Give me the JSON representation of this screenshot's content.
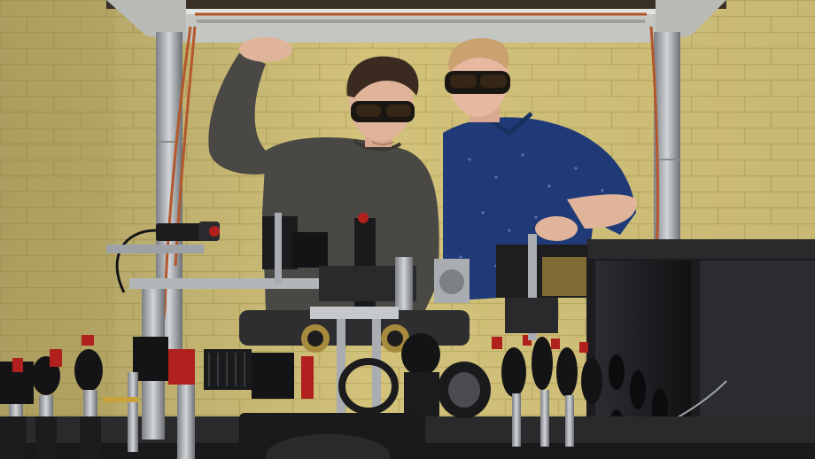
{
  "image": {
    "colors": {
      "wall": "#d2c27a",
      "wall_shadow": "#b8a862",
      "mortar": "#bfae66",
      "frame": "#c9cbc6",
      "copper": "#b4582c",
      "sweater": "#4a4844",
      "shirt": "#203a78",
      "skin": "#e0b49a",
      "hair_dark": "#3a2a20",
      "hair_blond": "#c9a270",
      "goggles": "#1a1612",
      "enclosure": "#202022",
      "enclosure_panel": "#2e3034",
      "optics_black": "#141416",
      "metal": "#a9adb1",
      "brass": "#a88a3c",
      "mount_red": "#b0201c"
    }
  }
}
